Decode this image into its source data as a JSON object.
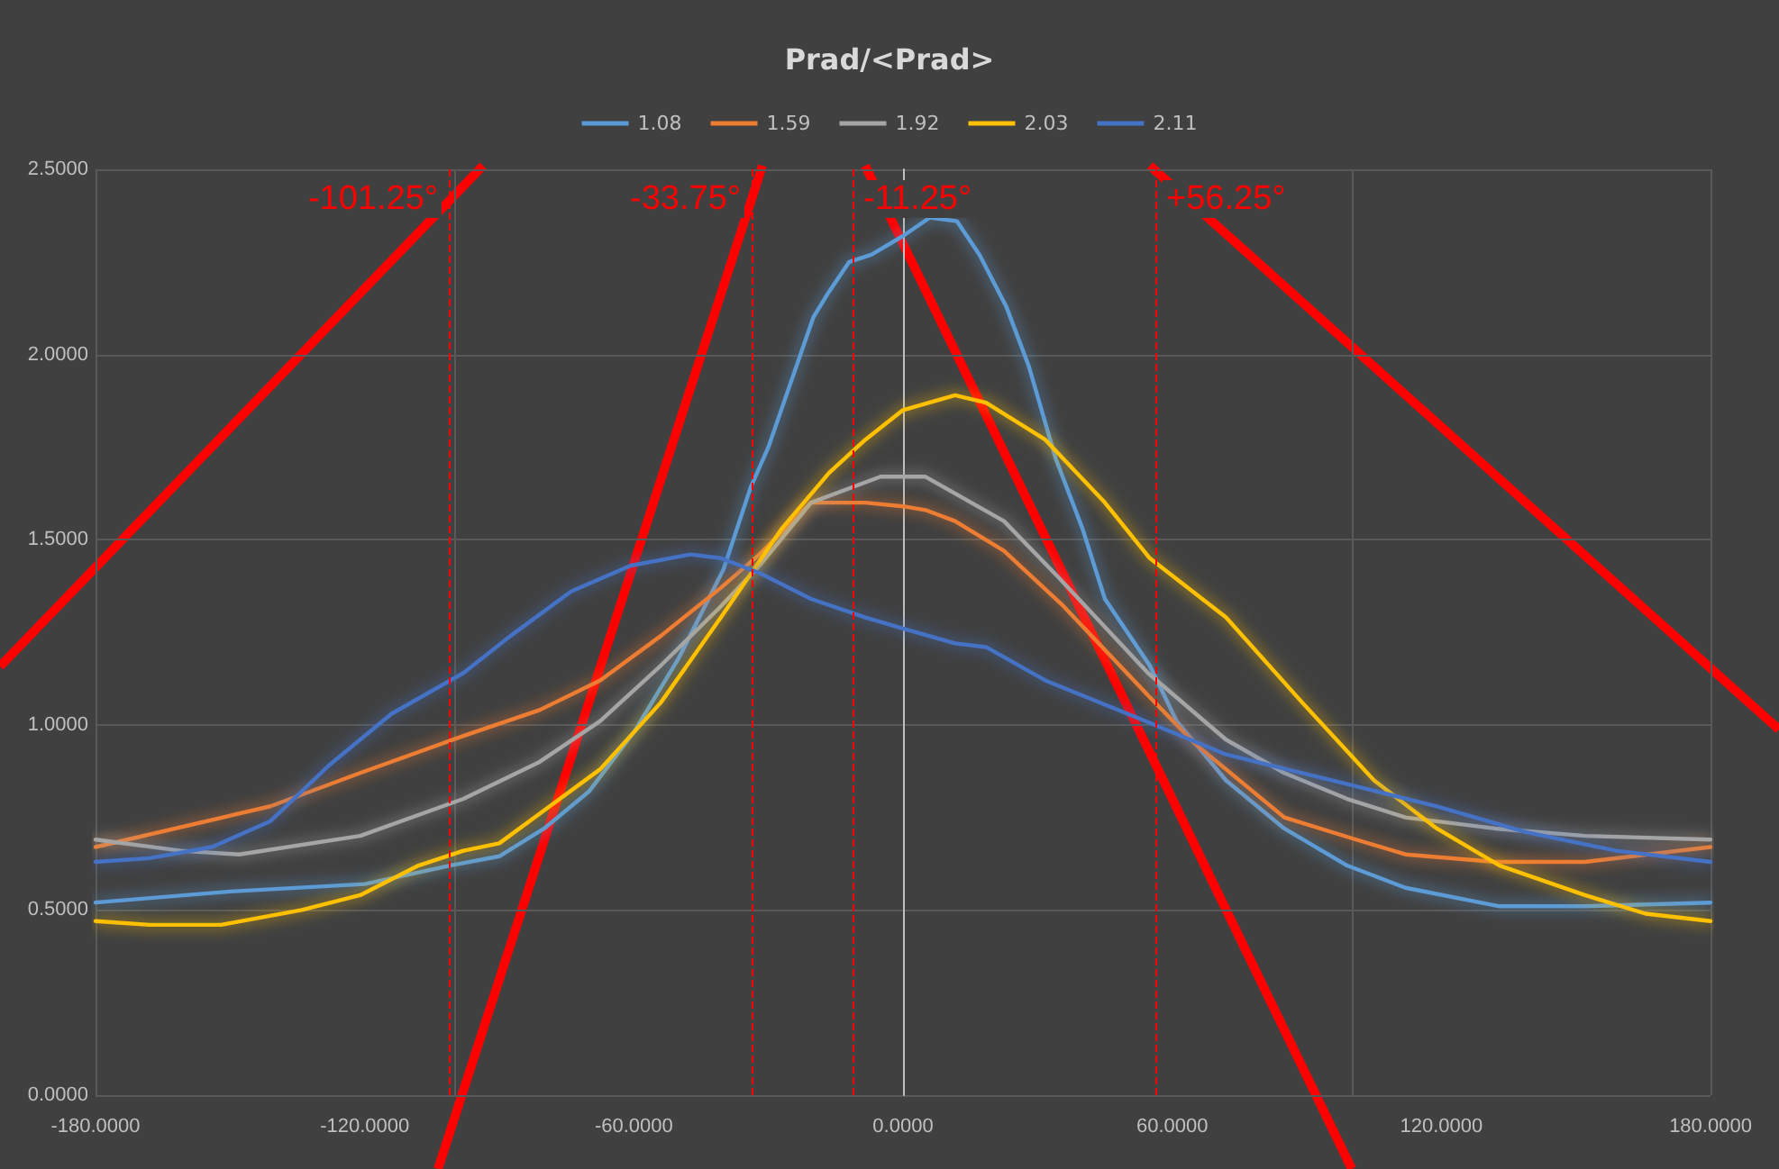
{
  "chart_data": {
    "type": "line",
    "title": "Prad/<Prad>",
    "legend": "top",
    "grid": true,
    "marker": "none",
    "line_style": "solid",
    "xlim": [
      -180,
      180
    ],
    "ylim": [
      0,
      2.5
    ],
    "xticks": [
      {
        "value": -180,
        "label": "-180.0000"
      },
      {
        "value": -120,
        "label": "-120.0000"
      },
      {
        "value": -60,
        "label": "-60.0000"
      },
      {
        "value": 0,
        "label": "0.0000"
      },
      {
        "value": 60,
        "label": "60.0000"
      },
      {
        "value": 120,
        "label": "120.0000"
      },
      {
        "value": 180,
        "label": "180.0000"
      }
    ],
    "yticks": [
      {
        "value": 0,
        "label": "0.0000"
      },
      {
        "value": 0.5,
        "label": "0.5000"
      },
      {
        "value": 1,
        "label": "1.0000"
      },
      {
        "value": 1.5,
        "label": "1.5000"
      },
      {
        "value": 2,
        "label": "2.0000"
      },
      {
        "value": 2.5,
        "label": "2.5000"
      }
    ],
    "ref_lines": [
      {
        "axis": "x",
        "value": -101.25,
        "label": "-101.25°",
        "color": "#ff0000",
        "line_style": "dashed"
      },
      {
        "axis": "x",
        "value": -33.75,
        "label": "-33.75°",
        "color": "#ff0000",
        "line_style": "dashed"
      },
      {
        "axis": "x",
        "value": -11.25,
        "label": "-11.25°",
        "color": "#ff0000",
        "line_style": "dashed"
      },
      {
        "axis": "x",
        "value": 56.25,
        "label": "+56.25°",
        "color": "#ff0000",
        "line_style": "dashed"
      }
    ],
    "series": [
      {
        "name": "1.08",
        "color": "#5b9bd5",
        "x": [
          -180,
          -150,
          -120,
          -101,
          -90,
          -80,
          -70,
          -60,
          -50,
          -40,
          -34,
          -30,
          -20,
          -17,
          -12,
          -7,
          0,
          6,
          12,
          17,
          23,
          28,
          34,
          40,
          45,
          55,
          61,
          72,
          85,
          99,
          112,
          133,
          152,
          180
        ],
        "values": [
          0.52,
          0.55,
          0.57,
          0.62,
          0.645,
          0.72,
          0.82,
          0.98,
          1.18,
          1.42,
          1.64,
          1.75,
          2.1,
          2.16,
          2.25,
          2.27,
          2.32,
          2.37,
          2.36,
          2.27,
          2.13,
          1.97,
          1.72,
          1.53,
          1.34,
          1.16,
          1.01,
          0.85,
          0.72,
          0.62,
          0.56,
          0.51,
          0.51,
          0.52
        ]
      },
      {
        "name": "1.59",
        "color": "#ed7d31",
        "x": [
          -180,
          -141,
          -121,
          -98,
          -81,
          -67.5,
          -54,
          -40.6,
          -32,
          -20.5,
          -8.4,
          0,
          5,
          11.6,
          22.5,
          35.8,
          54.6,
          65,
          85,
          101,
          112,
          132,
          152,
          180
        ],
        "values": [
          0.67,
          0.78,
          0.87,
          0.97,
          1.04,
          1.12,
          1.24,
          1.37,
          1.46,
          1.6,
          1.6,
          1.59,
          1.58,
          1.55,
          1.47,
          1.32,
          1.08,
          0.95,
          0.75,
          0.69,
          0.65,
          0.63,
          0.63,
          0.67
        ]
      },
      {
        "name": "1.92",
        "color": "#a5a5a5",
        "x": [
          -180,
          -161,
          -148,
          -121,
          -98,
          -81,
          -67.5,
          -54,
          -40.6,
          -32,
          -20.5,
          -5,
          5,
          22.5,
          34.5,
          54.6,
          72,
          85,
          99,
          112,
          132,
          152,
          180
        ],
        "values": [
          0.69,
          0.66,
          0.65,
          0.7,
          0.8,
          0.9,
          1.01,
          1.16,
          1.32,
          1.43,
          1.6,
          1.67,
          1.67,
          1.55,
          1.4,
          1.14,
          0.96,
          0.87,
          0.8,
          0.75,
          0.72,
          0.7,
          0.69
        ]
      },
      {
        "name": "2.03",
        "color": "#ffc000",
        "x": [
          -180,
          -168,
          -152,
          -134,
          -121,
          -108,
          -98,
          -90,
          -81,
          -67.5,
          -54,
          -40.6,
          -27,
          -16.5,
          -8.4,
          0,
          11.6,
          18.5,
          31.7,
          45,
          55,
          72,
          89,
          105,
          119,
          133,
          152,
          165.5,
          180
        ],
        "values": [
          0.47,
          0.46,
          0.46,
          0.5,
          0.54,
          0.62,
          0.66,
          0.68,
          0.76,
          0.88,
          1.06,
          1.29,
          1.53,
          1.68,
          1.77,
          1.85,
          1.89,
          1.87,
          1.77,
          1.6,
          1.45,
          1.29,
          1.06,
          0.85,
          0.72,
          0.62,
          0.54,
          0.49,
          0.47
        ]
      },
      {
        "name": "2.11",
        "color": "#4472c4",
        "x": [
          -180,
          -168,
          -154,
          -141,
          -128,
          -114,
          -98,
          -87.5,
          -74,
          -60.7,
          -47.4,
          -40.6,
          -32,
          -20.5,
          -8.4,
          0,
          11.6,
          18.5,
          31.7,
          52,
          72,
          99,
          119,
          139,
          159,
          180
        ],
        "values": [
          0.63,
          0.64,
          0.67,
          0.74,
          0.89,
          1.03,
          1.14,
          1.24,
          1.36,
          1.43,
          1.46,
          1.45,
          1.41,
          1.34,
          1.29,
          1.26,
          1.22,
          1.21,
          1.12,
          1.02,
          0.92,
          0.84,
          0.78,
          0.71,
          0.66,
          0.63
        ]
      }
    ]
  }
}
